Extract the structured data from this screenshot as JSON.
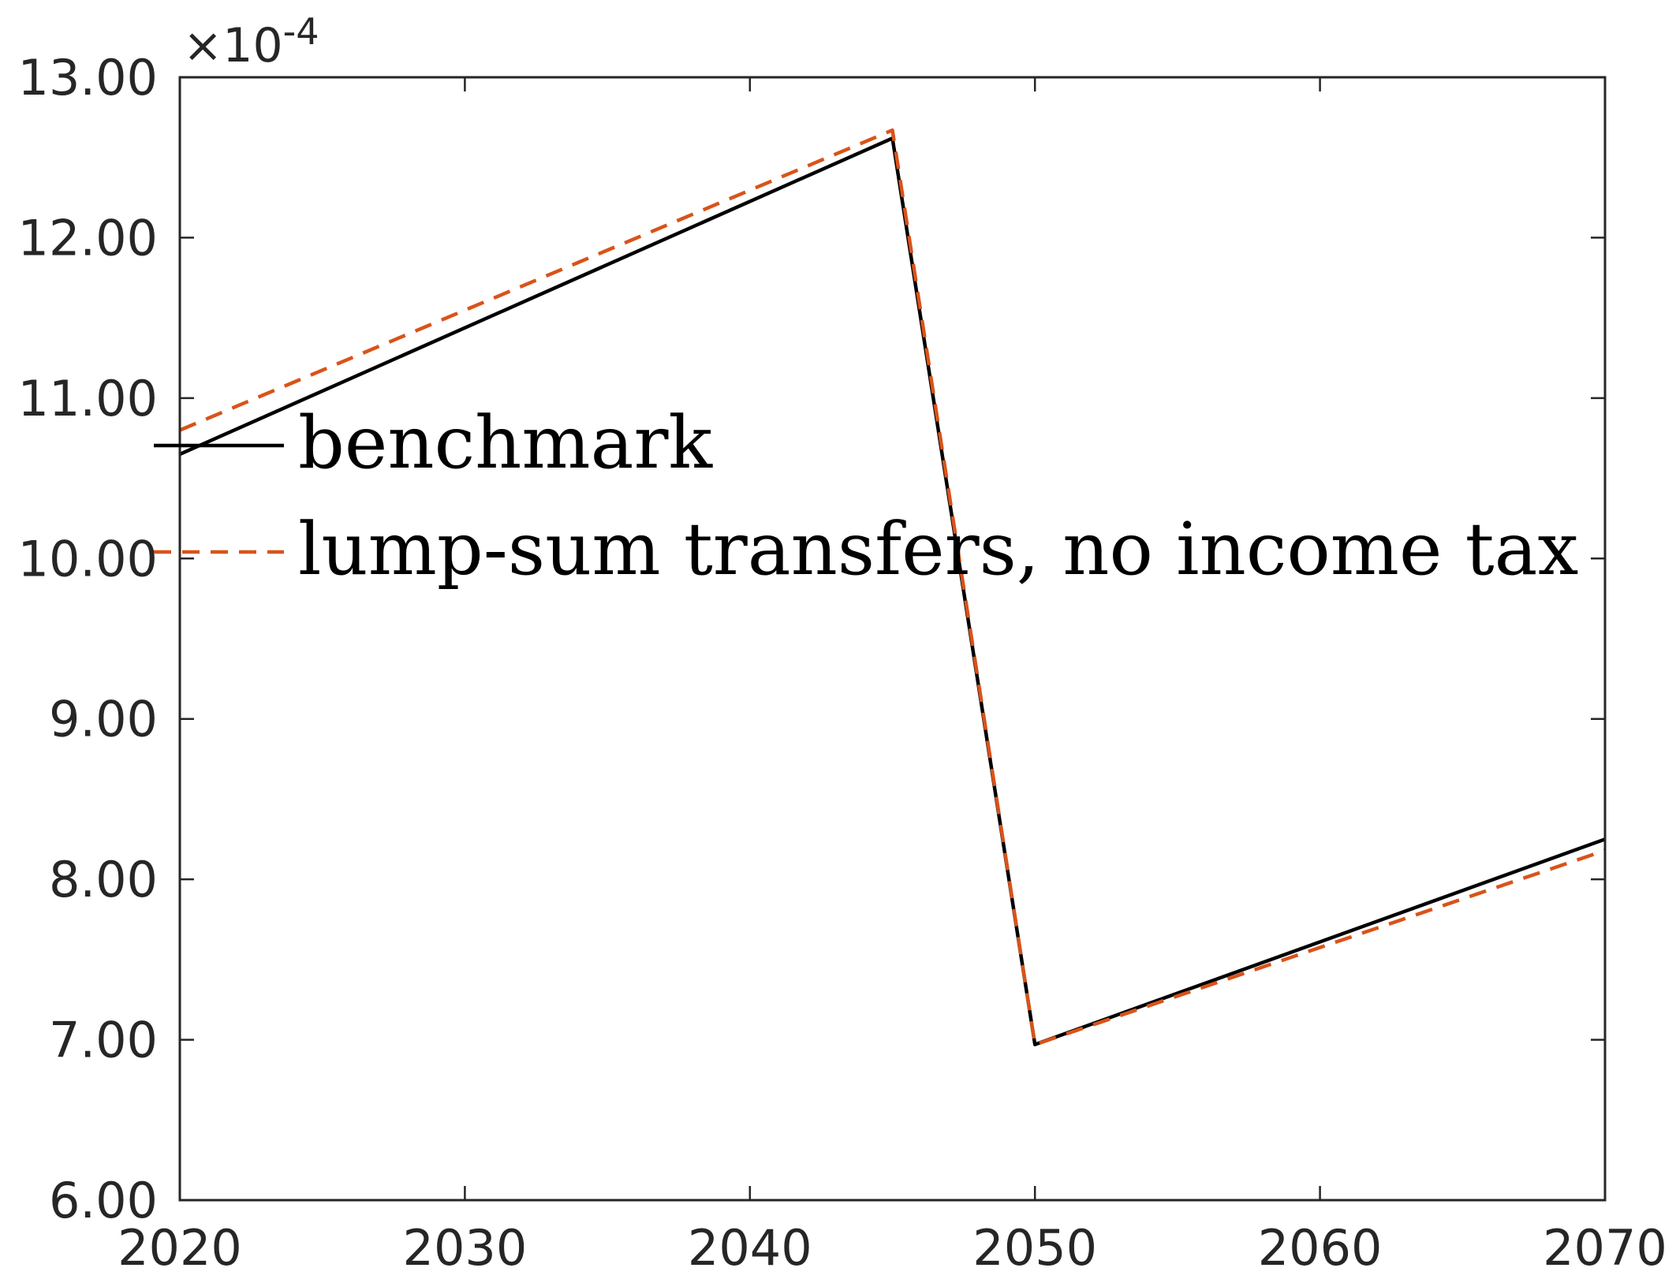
{
  "chart_data": {
    "type": "line",
    "y_multiplier_label": "×10",
    "y_multiplier_exponent": "-4",
    "xlim": [
      2020,
      2070
    ],
    "ylim": [
      6.0,
      13.0
    ],
    "x_ticks": [
      "2020",
      "2030",
      "2040",
      "2050",
      "2060",
      "2070"
    ],
    "y_ticks": [
      "6.00",
      "7.00",
      "8.00",
      "9.00",
      "10.00",
      "11.00",
      "12.00",
      "13.00"
    ],
    "grid": false,
    "legend_position": "upper-left",
    "series": [
      {
        "name": "benchmark",
        "color": "#000000",
        "style": "solid",
        "x": [
          2020,
          2045,
          2050,
          2070
        ],
        "y": [
          10.65,
          12.62,
          6.97,
          8.25
        ]
      },
      {
        "name": "lump-sum transfers, no income tax",
        "color": "#D95319",
        "style": "dashed",
        "x": [
          2020,
          2045,
          2050,
          2070
        ],
        "y": [
          10.8,
          12.67,
          6.97,
          8.18
        ]
      }
    ]
  }
}
